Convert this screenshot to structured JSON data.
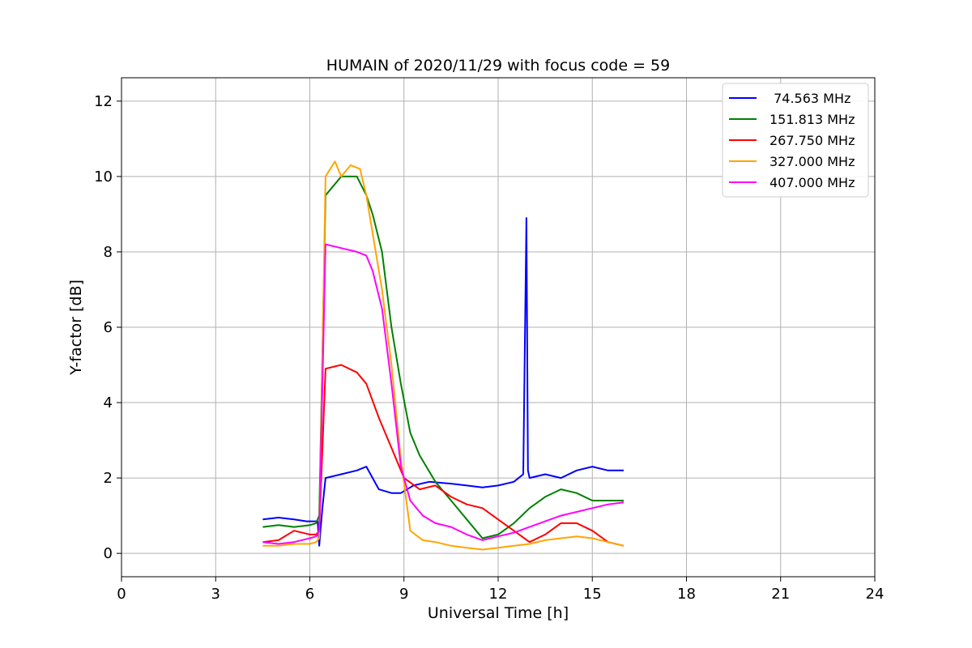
{
  "chart_data": {
    "type": "line",
    "title": "HUMAIN of 2020/11/29 with focus code = 59",
    "xlabel": "Universal Time [h]",
    "ylabel": "Y-factor [dB]",
    "xlim": [
      0,
      24
    ],
    "ylim": [
      -0.62,
      12.62
    ],
    "xticks": [
      0,
      3,
      6,
      9,
      12,
      15,
      18,
      21,
      24
    ],
    "xtick_labels": [
      "0",
      "3",
      "6",
      "9",
      "12",
      "15",
      "18",
      "21",
      "24"
    ],
    "yticks": [
      0,
      2,
      4,
      6,
      8,
      10,
      12
    ],
    "ytick_labels": [
      "0",
      "2",
      "4",
      "6",
      "8",
      "10",
      "12"
    ],
    "grid": true,
    "legend_position": "top-right",
    "series": [
      {
        "name": " 74.563 MHz",
        "color": "#0000ff",
        "x": [
          4.5,
          5.0,
          5.5,
          5.9,
          6.1,
          6.25,
          6.3,
          6.4,
          6.5,
          7.0,
          7.5,
          7.8,
          8.2,
          8.6,
          8.9,
          9.3,
          9.8,
          10.5,
          11.0,
          11.5,
          12.0,
          12.5,
          12.8,
          12.9,
          12.95,
          13.0,
          13.5,
          14.0,
          14.5,
          15.0,
          15.5,
          16.0
        ],
        "y": [
          0.9,
          0.95,
          0.9,
          0.85,
          0.85,
          0.85,
          0.2,
          1.2,
          2.0,
          2.1,
          2.2,
          2.3,
          1.7,
          1.6,
          1.6,
          1.8,
          1.9,
          1.85,
          1.8,
          1.75,
          1.8,
          1.9,
          2.1,
          8.9,
          2.2,
          2.0,
          2.1,
          2.0,
          2.2,
          2.3,
          2.2,
          2.2
        ]
      },
      {
        "name": "151.813 MHz",
        "color": "#008000",
        "x": [
          4.5,
          5.0,
          5.5,
          6.0,
          6.2,
          6.3,
          6.5,
          7.0,
          7.5,
          7.8,
          8.0,
          8.3,
          8.6,
          8.9,
          9.2,
          9.5,
          10.0,
          10.5,
          11.0,
          11.5,
          12.0,
          12.5,
          13.0,
          13.5,
          14.0,
          14.5,
          15.0,
          15.5,
          16.0
        ],
        "y": [
          0.7,
          0.75,
          0.7,
          0.75,
          0.8,
          1.0,
          9.5,
          10.0,
          10.0,
          9.5,
          9.0,
          8.0,
          6.0,
          4.5,
          3.2,
          2.6,
          1.9,
          1.4,
          0.9,
          0.4,
          0.5,
          0.8,
          1.2,
          1.5,
          1.7,
          1.6,
          1.4,
          1.4,
          1.4
        ]
      },
      {
        "name": "267.750 MHz",
        "color": "#ff0000",
        "x": [
          4.5,
          5.0,
          5.5,
          6.0,
          6.2,
          6.3,
          6.5,
          7.0,
          7.5,
          7.8,
          8.2,
          8.6,
          9.0,
          9.5,
          10.0,
          10.5,
          11.0,
          11.5,
          12.0,
          12.5,
          13.0,
          13.5,
          14.0,
          14.5,
          15.0,
          15.5,
          16.0
        ],
        "y": [
          0.3,
          0.35,
          0.6,
          0.5,
          0.5,
          0.6,
          4.9,
          5.0,
          4.8,
          4.5,
          3.6,
          2.8,
          2.0,
          1.7,
          1.8,
          1.5,
          1.3,
          1.2,
          0.9,
          0.6,
          0.3,
          0.5,
          0.8,
          0.8,
          0.6,
          0.3,
          0.2
        ]
      },
      {
        "name": "327.000 MHz",
        "color": "#ffa500",
        "x": [
          4.5,
          5.0,
          5.5,
          6.0,
          6.2,
          6.3,
          6.5,
          6.8,
          7.0,
          7.3,
          7.6,
          7.8,
          8.0,
          8.3,
          8.6,
          8.9,
          9.2,
          9.6,
          10.0,
          10.5,
          11.0,
          11.5,
          12.0,
          12.5,
          13.0,
          13.5,
          14.0,
          14.5,
          15.0,
          15.5,
          16.0
        ],
        "y": [
          0.2,
          0.2,
          0.25,
          0.25,
          0.3,
          0.4,
          10.0,
          10.4,
          10.0,
          10.3,
          10.2,
          9.5,
          8.5,
          7.0,
          5.0,
          2.5,
          0.6,
          0.35,
          0.3,
          0.2,
          0.15,
          0.1,
          0.15,
          0.2,
          0.25,
          0.35,
          0.4,
          0.45,
          0.4,
          0.3,
          0.2
        ]
      },
      {
        "name": "407.000 MHz",
        "color": "#ff00ff",
        "x": [
          4.5,
          5.0,
          5.5,
          6.0,
          6.2,
          6.3,
          6.5,
          7.0,
          7.5,
          7.8,
          8.0,
          8.3,
          8.6,
          8.9,
          9.2,
          9.6,
          10.0,
          10.5,
          11.0,
          11.5,
          12.0,
          12.5,
          13.0,
          13.5,
          14.0,
          14.5,
          15.0,
          15.5,
          16.0
        ],
        "y": [
          0.3,
          0.25,
          0.3,
          0.4,
          0.45,
          0.6,
          8.2,
          8.1,
          8.0,
          7.9,
          7.5,
          6.5,
          4.5,
          2.3,
          1.4,
          1.0,
          0.8,
          0.7,
          0.5,
          0.35,
          0.45,
          0.55,
          0.7,
          0.85,
          1.0,
          1.1,
          1.2,
          1.3,
          1.35
        ]
      }
    ]
  }
}
